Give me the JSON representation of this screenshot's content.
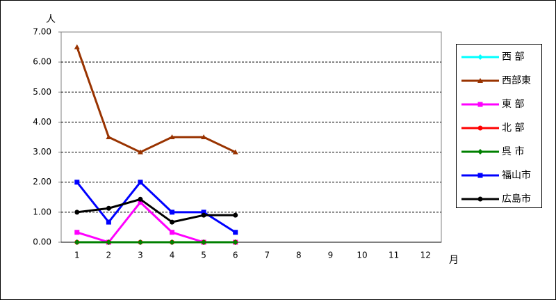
{
  "chart_data": {
    "type": "line",
    "y_label": "人",
    "x_label": "月",
    "categories": [
      "1",
      "2",
      "3",
      "4",
      "5",
      "6",
      "7",
      "8",
      "9",
      "10",
      "11",
      "12"
    ],
    "series": [
      {
        "name": "西 部",
        "color": "#00ffff",
        "marker": "diamond",
        "values": [
          0,
          0,
          0,
          0,
          0,
          0,
          null,
          null,
          null,
          null,
          null,
          null
        ]
      },
      {
        "name": "西部東",
        "color": "#993300",
        "marker": "triangle",
        "values": [
          6.5,
          3.5,
          3.0,
          3.5,
          3.5,
          3.0,
          null,
          null,
          null,
          null,
          null,
          null
        ]
      },
      {
        "name": "東 部",
        "color": "#ff00ff",
        "marker": "square",
        "values": [
          0.33,
          0,
          1.33,
          0.33,
          0,
          0,
          null,
          null,
          null,
          null,
          null,
          null
        ]
      },
      {
        "name": "北 部",
        "color": "#ff0000",
        "marker": "circle",
        "values": [
          0,
          0,
          0,
          0,
          0,
          0,
          null,
          null,
          null,
          null,
          null,
          null
        ]
      },
      {
        "name": "呉 市",
        "color": "#008000",
        "marker": "diamond",
        "values": [
          0,
          0,
          0,
          0,
          0,
          0,
          null,
          null,
          null,
          null,
          null,
          null
        ]
      },
      {
        "name": "福山市",
        "color": "#0000ff",
        "marker": "square",
        "values": [
          2,
          0.67,
          2,
          1,
          1,
          0.33,
          null,
          null,
          null,
          null,
          null,
          null
        ]
      },
      {
        "name": "広島市",
        "color": "#000000",
        "marker": "circle",
        "values": [
          1,
          1.13,
          1.43,
          0.67,
          0.9,
          0.9,
          null,
          null,
          null,
          null,
          null,
          null
        ]
      }
    ],
    "ylim": [
      0,
      7
    ],
    "yticks": [
      {
        "value": 0,
        "label": "0.00"
      },
      {
        "value": 1,
        "label": "1.00"
      },
      {
        "value": 2,
        "label": "2.00"
      },
      {
        "value": 3,
        "label": "3.00"
      },
      {
        "value": 4,
        "label": "4.00"
      },
      {
        "value": 5,
        "label": "5.00"
      },
      {
        "value": 6,
        "label": "6.00"
      },
      {
        "value": 7,
        "label": "7.00"
      }
    ],
    "grid": true
  }
}
